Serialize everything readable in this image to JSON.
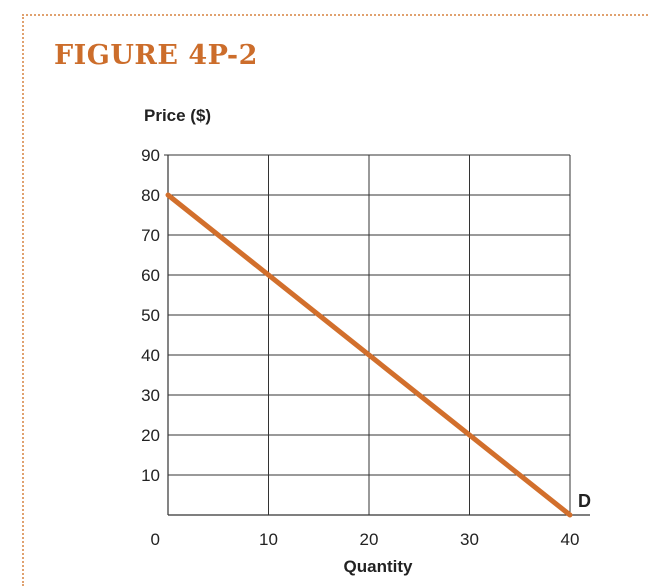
{
  "figure_title": "FIGURE 4P-2",
  "colors": {
    "accent": "#cc6d2b",
    "frame": "#e0a16f",
    "grid": "#333333",
    "line": "#d26f2c"
  },
  "chart_data": {
    "type": "line",
    "title": "FIGURE 4P-2",
    "xlabel": "Quantity",
    "ylabel": "Price ($)",
    "xlim": [
      0,
      40
    ],
    "ylim": [
      0,
      90
    ],
    "x_ticks": [
      0,
      10,
      20,
      30,
      40
    ],
    "y_ticks": [
      10,
      20,
      30,
      40,
      50,
      60,
      70,
      80,
      90
    ],
    "origin_label": "0",
    "grid": true,
    "series": [
      {
        "name": "D",
        "x": [
          0,
          40
        ],
        "y": [
          80,
          0
        ]
      }
    ]
  }
}
